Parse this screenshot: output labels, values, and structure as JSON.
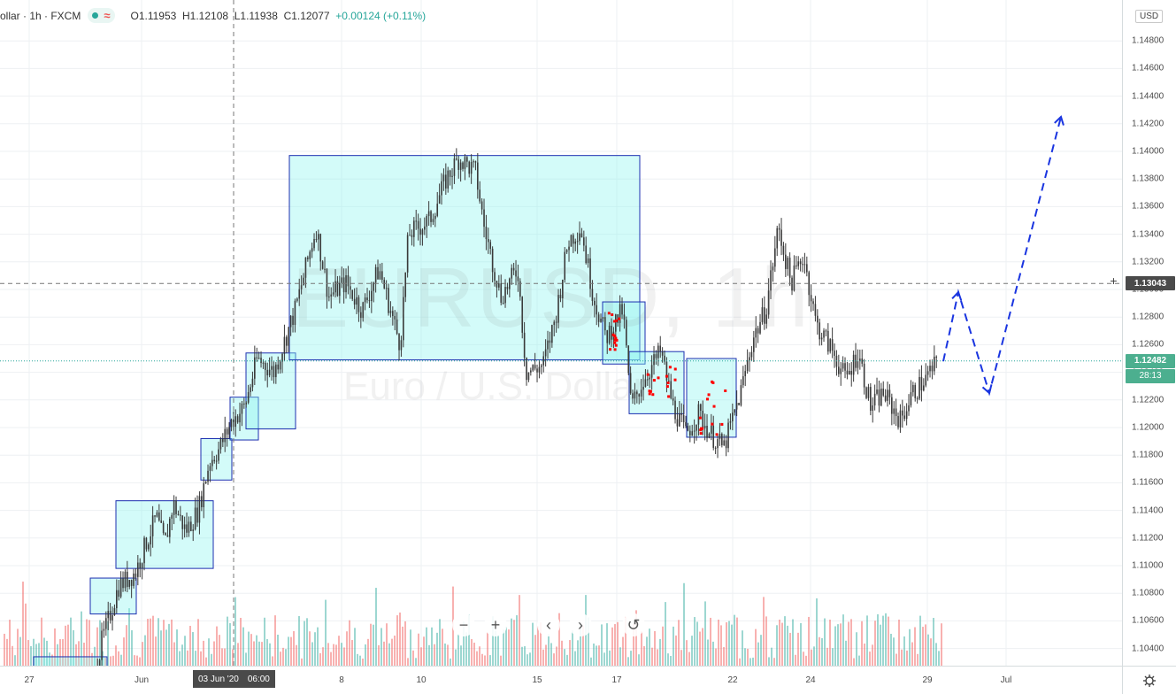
{
  "legend": {
    "symbol": "ollar · 1h · FXCM",
    "open": "O1.11953",
    "high": "H1.12108",
    "low": "L1.11938",
    "close": "C1.12077",
    "change": "+0.00124 (+0.11%)"
  },
  "watermark": {
    "title": "EURUSD, 1h",
    "subtitle": "Euro / U.S. Dollar"
  },
  "price_scale": {
    "currency": "USD",
    "ticks": [
      "1.14800",
      "1.14600",
      "1.14400",
      "1.14200",
      "1.14000",
      "1.13800",
      "1.13600",
      "1.13400",
      "1.13200",
      "1.13000",
      "1.12800",
      "1.12600",
      "1.12400",
      "1.12200",
      "1.12000",
      "1.11800",
      "1.11600",
      "1.11400",
      "1.11200",
      "1.11000",
      "1.10800",
      "1.10600",
      "1.10400"
    ],
    "crosshair_price": "1.13043",
    "last_price": "1.12482",
    "countdown": "28:13"
  },
  "time_scale": {
    "ticks": [
      "27",
      "Jun",
      "8",
      "10",
      "15",
      "17",
      "22",
      "24",
      "29",
      "Jul"
    ],
    "crosshair_date": "03 Jun '20",
    "crosshair_time": "06:00"
  },
  "nav": {
    "zoom_out": "−",
    "zoom_in": "+",
    "scroll_left": "‹",
    "scroll_right": "›",
    "reset": "↺"
  },
  "colors": {
    "up": "#26a69a",
    "down": "#ef5350",
    "box_fill": "#ccfaf8",
    "box_border": "#1c2fb0",
    "projection": "#1a35e0",
    "dots": "#ff0000"
  },
  "chart_data": {
    "type": "candlestick",
    "symbol": "EURUSD",
    "interval": "1h",
    "ylim": [
      1.1024,
      1.1504
    ],
    "x_ticks": [
      "27",
      "Jun",
      "8",
      "10",
      "15",
      "17",
      "22",
      "24",
      "29",
      "Jul"
    ],
    "price_path": [
      [
        0.095,
        1.1027
      ],
      [
        0.1,
        1.1045
      ],
      [
        0.12,
        1.1085
      ],
      [
        0.14,
        1.1095
      ],
      [
        0.155,
        1.112
      ],
      [
        0.165,
        1.1135
      ],
      [
        0.175,
        1.1115
      ],
      [
        0.185,
        1.1145
      ],
      [
        0.2,
        1.1125
      ],
      [
        0.215,
        1.114
      ],
      [
        0.228,
        1.1175
      ],
      [
        0.24,
        1.1185
      ],
      [
        0.255,
        1.1205
      ],
      [
        0.27,
        1.1215
      ],
      [
        0.285,
        1.125
      ],
      [
        0.305,
        1.124
      ],
      [
        0.33,
        1.1285
      ],
      [
        0.355,
        1.1345
      ],
      [
        0.37,
        1.1295
      ],
      [
        0.39,
        1.1305
      ],
      [
        0.41,
        1.1285
      ],
      [
        0.43,
        1.1315
      ],
      [
        0.455,
        1.126
      ],
      [
        0.465,
        1.134
      ],
      [
        0.49,
        1.135
      ],
      [
        0.51,
        1.138
      ],
      [
        0.525,
        1.1395
      ],
      [
        0.545,
        1.1385
      ],
      [
        0.555,
        1.1345
      ],
      [
        0.575,
        1.1295
      ],
      [
        0.595,
        1.1315
      ],
      [
        0.605,
        1.124
      ],
      [
        0.625,
        1.1245
      ],
      [
        0.64,
        1.128
      ],
      [
        0.655,
        1.1335
      ],
      [
        0.67,
        1.1345
      ],
      [
        0.685,
        1.1295
      ],
      [
        0.7,
        1.1265
      ],
      [
        0.72,
        1.1285
      ],
      [
        0.73,
        1.1215
      ],
      [
        0.745,
        1.1235
      ],
      [
        0.765,
        1.1255
      ],
      [
        0.78,
        1.1215
      ],
      [
        0.795,
        1.1195
      ],
      [
        0.81,
        1.121
      ],
      [
        0.825,
        1.1195
      ],
      [
        0.84,
        1.1185
      ],
      [
        0.86,
        1.1225
      ],
      [
        0.875,
        1.1265
      ],
      [
        0.89,
        1.1285
      ],
      [
        0.905,
        1.1345
      ],
      [
        0.92,
        1.1305
      ],
      [
        0.935,
        1.1325
      ],
      [
        0.95,
        1.1275
      ],
      [
        0.97,
        1.1255
      ],
      [
        0.985,
        1.1235
      ],
      [
        1.0,
        1.1255
      ],
      [
        1.015,
        1.1215
      ],
      [
        1.03,
        1.1225
      ],
      [
        1.05,
        1.1205
      ],
      [
        1.065,
        1.1225
      ],
      [
        1.08,
        1.1235
      ],
      [
        1.095,
        1.1248
      ]
    ],
    "annotations": {
      "zones": [
        {
          "p_top": 1.1034,
          "p_bot": 1.1023
        },
        {
          "p_top": 1.1091,
          "p_bot": 1.1065
        },
        {
          "p_top": 1.1147,
          "p_bot": 1.1098
        },
        {
          "p_top": 1.1192,
          "p_bot": 1.1162
        },
        {
          "p_top": 1.1222,
          "p_bot": 1.1191
        },
        {
          "p_top": 1.1254,
          "p_bot": 1.1199
        },
        {
          "p_top": 1.1397,
          "p_bot": 1.1249
        },
        {
          "p_top": 1.1291,
          "p_bot": 1.1246
        },
        {
          "p_top": 1.1255,
          "p_bot": 1.121
        },
        {
          "p_top": 1.125,
          "p_bot": 1.1193
        }
      ],
      "projection_prices": [
        1.1248,
        1.1298,
        1.1225,
        1.1425
      ]
    }
  }
}
